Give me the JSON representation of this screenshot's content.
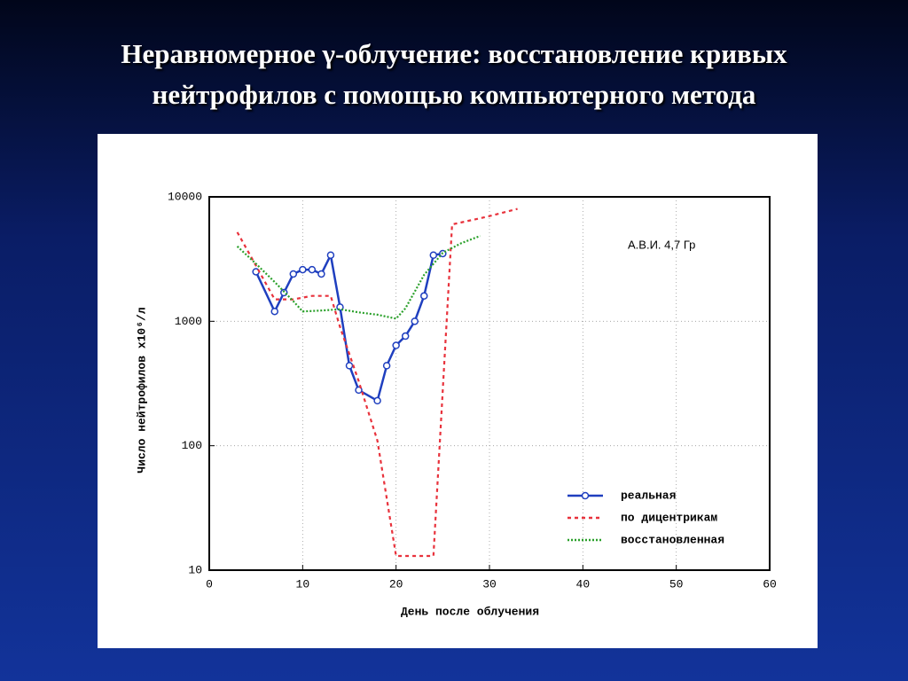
{
  "chart_data": {
    "type": "line",
    "title": [
      "Неравномерное γ-облучение: восстановление кривых",
      "нейтрофилов с помощью компьютерного метода"
    ],
    "x_label": "День после облучения",
    "y_label": "Число нейтрофилов х10⁶/л",
    "annotation": "А.В.И. 4,7 Гр",
    "xlim": [
      0,
      60
    ],
    "xticks": [
      0,
      10,
      20,
      30,
      40,
      50,
      60
    ],
    "ylim": [
      10,
      10000
    ],
    "yticks": [
      10,
      100,
      1000,
      10000
    ],
    "yscale": "log",
    "grid": true,
    "legend": "lower right",
    "series": [
      {
        "name": "реальная",
        "color": "#1f3fbf",
        "style": "solid",
        "marker": "circle",
        "x": [
          5,
          7,
          8,
          9,
          10,
          11,
          12,
          13,
          14,
          15,
          16,
          18,
          19,
          20,
          21,
          22,
          23,
          24,
          25
        ],
        "values": [
          2500,
          1200,
          1700,
          2400,
          2600,
          2600,
          2400,
          3400,
          1300,
          440,
          280,
          230,
          440,
          640,
          760,
          1000,
          1600,
          3400,
          3500
        ]
      },
      {
        "name": "по дицентрикам",
        "color": "#e8323c",
        "style": "dashed",
        "x": [
          3,
          5,
          7,
          9,
          11,
          13,
          14,
          16,
          18,
          20,
          24,
          26,
          30,
          33
        ],
        "values": [
          5200,
          2800,
          1500,
          1500,
          1600,
          1600,
          900,
          330,
          110,
          13,
          13,
          6000,
          7000,
          8000
        ]
      },
      {
        "name": "восстановленная",
        "color": "#2aa02a",
        "style": "dotted",
        "x": [
          3,
          5,
          7,
          9,
          10,
          12,
          14,
          16,
          18,
          20,
          21,
          23,
          25,
          27,
          29
        ],
        "values": [
          4000,
          2900,
          2070,
          1450,
          1200,
          1220,
          1250,
          1180,
          1130,
          1050,
          1270,
          2360,
          3550,
          4250,
          4850
        ]
      }
    ]
  }
}
